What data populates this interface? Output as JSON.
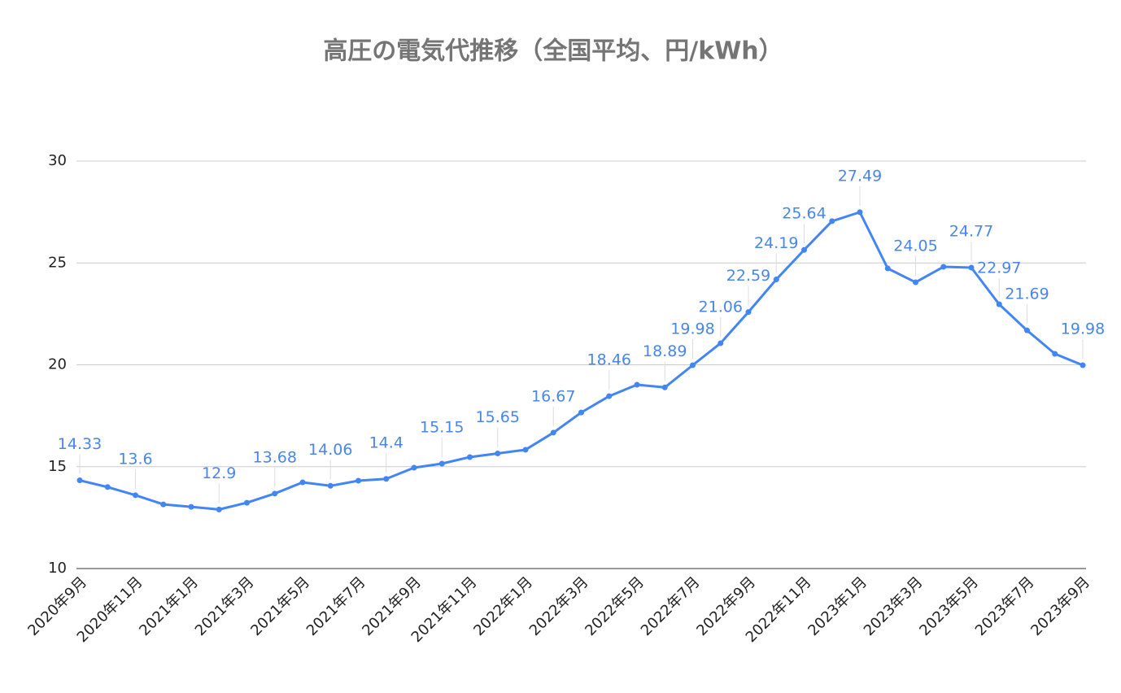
{
  "chart_data": {
    "type": "line",
    "title": "高圧の電気代推移（全国平均、円/kWh）",
    "categories": [
      "2020年9月",
      null,
      "2020年11月",
      null,
      "2021年1月",
      null,
      "2021年3月",
      null,
      "2021年5月",
      null,
      "2021年7月",
      null,
      "2021年9月",
      null,
      "2021年11月",
      null,
      "2022年1月",
      null,
      "2022年3月",
      null,
      "2022年5月",
      null,
      "2022年7月",
      null,
      "2022年9月",
      null,
      "2022年11月",
      null,
      "2023年1月",
      null,
      "2023年3月",
      null,
      "2023年5月",
      null,
      "2023年7月",
      null,
      "2023年9月"
    ],
    "series": [
      {
        "name": "高圧",
        "color": "#4285f4",
        "values": [
          14.33,
          14.0,
          13.6,
          13.15,
          13.03,
          12.9,
          13.23,
          13.68,
          14.23,
          14.06,
          14.31,
          14.4,
          14.95,
          15.15,
          15.47,
          15.65,
          15.83,
          16.67,
          17.66,
          18.46,
          19.02,
          18.89,
          19.98,
          21.06,
          22.59,
          24.19,
          25.64,
          27.05,
          27.49,
          24.73,
          24.05,
          24.81,
          24.77,
          22.97,
          21.69,
          20.54,
          19.98
        ],
        "value_labels": [
          "14.33",
          null,
          "13.6",
          null,
          null,
          "12.9",
          null,
          "13.68",
          null,
          "14.06",
          null,
          "14.4",
          null,
          "15.15",
          null,
          "15.65",
          null,
          "16.67",
          null,
          "18.46",
          null,
          "18.89",
          "19.98",
          "21.06",
          "22.59",
          "24.19",
          "25.64",
          null,
          "27.49",
          null,
          "24.05",
          null,
          "24.77",
          "22.97",
          "21.69",
          null,
          "19.98"
        ]
      }
    ],
    "ylim": [
      10,
      30
    ],
    "yticks": [
      10,
      15,
      20,
      25,
      30
    ],
    "grid": true
  }
}
